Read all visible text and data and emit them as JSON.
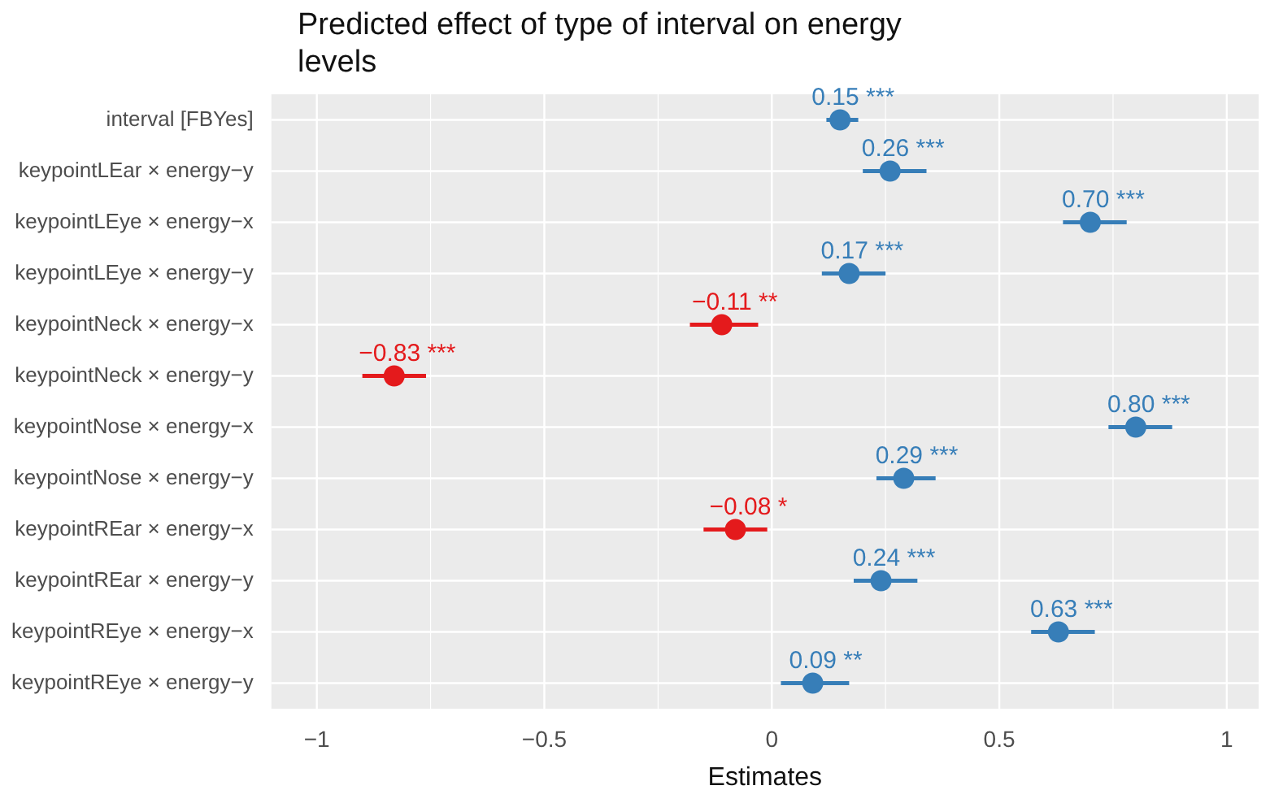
{
  "chart_data": {
    "type": "scatter",
    "orientation": "horizontal",
    "title": "Predicted effect of type of interval on energy levels",
    "xlabel": "Estimates",
    "categories": [
      "interval [FBYes]",
      "keypointLEar × energy−y",
      "keypointLEye × energy−x",
      "keypointLEye × energy−y",
      "keypointNeck × energy−x",
      "keypointNeck × energy−y",
      "keypointNose × energy−x",
      "keypointNose × energy−y",
      "keypointREar × energy−x",
      "keypointREar × energy−y",
      "keypointREye × energy−x",
      "keypointREye × energy−y"
    ],
    "values": [
      0.15,
      0.26,
      0.7,
      0.17,
      -0.11,
      -0.83,
      0.8,
      0.29,
      -0.08,
      0.24,
      0.63,
      0.09
    ],
    "errors": [
      [
        0.12,
        0.19
      ],
      [
        0.2,
        0.34
      ],
      [
        0.64,
        0.78
      ],
      [
        0.11,
        0.25
      ],
      [
        -0.18,
        -0.03
      ],
      [
        -0.9,
        -0.76
      ],
      [
        0.74,
        0.88
      ],
      [
        0.23,
        0.36
      ],
      [
        -0.15,
        -0.01
      ],
      [
        0.18,
        0.32
      ],
      [
        0.57,
        0.71
      ],
      [
        0.02,
        0.17
      ]
    ],
    "colors": [
      "#377eb8",
      "#377eb8",
      "#377eb8",
      "#377eb8",
      "#e41a1c",
      "#e41a1c",
      "#377eb8",
      "#377eb8",
      "#e41a1c",
      "#377eb8",
      "#377eb8",
      "#377eb8"
    ],
    "value_labels": [
      "0.15 ***",
      "0.26 ***",
      "0.70 ***",
      "0.17 ***",
      "−0.11 **",
      "−0.83 ***",
      "0.80 ***",
      "0.29 ***",
      "−0.08 *",
      "0.24 ***",
      "0.63 ***",
      "0.09 **"
    ],
    "xlim": [
      -1.1,
      1.07
    ],
    "xticks": [
      -1,
      {
        "value": -0.75,
        "label": null
      },
      -0.5,
      {
        "value": -0.25,
        "label": null
      },
      0,
      {
        "value": 0.25,
        "label": null
      },
      0.5,
      {
        "value": 0.75,
        "label": null
      },
      1
    ],
    "grid": true,
    "marker": "circle",
    "legend": false
  }
}
